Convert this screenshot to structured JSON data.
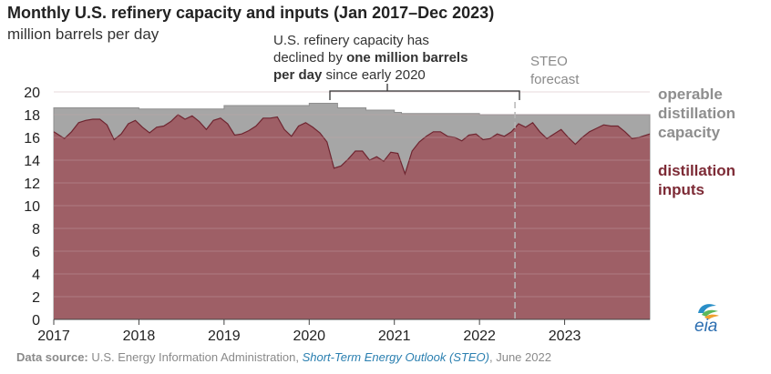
{
  "title": "Monthly U.S. refinery capacity and inputs (Jan 2017–Dec 2023)",
  "subtitle": "million barrels per day",
  "annotation": {
    "line1": "U.S. refinery capacity has",
    "line2_pre": "declined by ",
    "line2_bold": "one million barrels",
    "line3_bold": "per day",
    "line3_post": " since early 2020"
  },
  "forecast_label": [
    "STEO",
    "forecast"
  ],
  "legend": {
    "capacity": [
      "operable",
      "distillation",
      "capacity"
    ],
    "inputs": [
      "distillation",
      "inputs"
    ]
  },
  "colors": {
    "capacity": "#a6a6a6",
    "inputs": "#9e5f66",
    "inputs_line": "#6e2530",
    "gridline": "#c6a3a7",
    "forecast_line": "#b8b8b8"
  },
  "source": {
    "label": "Data source:",
    "text1": " U.S. Energy Information Administration, ",
    "link": "Short-Term Energy Outlook (STEO)",
    "text2": ", June 2022"
  },
  "logo_text": "eia",
  "chart_data": {
    "type": "area",
    "x_start": "2017-01",
    "x_end": "2023-12",
    "xticks": [
      "2017",
      "2018",
      "2019",
      "2020",
      "2021",
      "2022",
      "2023"
    ],
    "ylim": [
      0,
      20
    ],
    "yticks": [
      "0",
      "2",
      "4",
      "6",
      "8",
      "10",
      "12",
      "14",
      "16",
      "18",
      "20"
    ],
    "grid": true,
    "forecast_start": "2022-06",
    "series": [
      {
        "name": "operable distillation capacity",
        "values": [
          18.6,
          18.6,
          18.6,
          18.6,
          18.6,
          18.6,
          18.6,
          18.6,
          18.6,
          18.6,
          18.6,
          18.6,
          18.5,
          18.5,
          18.5,
          18.5,
          18.5,
          18.5,
          18.5,
          18.5,
          18.5,
          18.5,
          18.5,
          18.5,
          18.8,
          18.8,
          18.8,
          18.8,
          18.8,
          18.8,
          18.8,
          18.8,
          18.8,
          18.8,
          18.8,
          18.8,
          19.0,
          19.0,
          19.0,
          19.0,
          18.6,
          18.6,
          18.6,
          18.6,
          18.4,
          18.4,
          18.4,
          18.4,
          18.2,
          18.1,
          18.1,
          18.1,
          18.1,
          18.1,
          18.1,
          18.1,
          18.1,
          18.1,
          18.1,
          18.1,
          18.0,
          18.0,
          18.0,
          18.0,
          18.0,
          18.0,
          18.0,
          18.0,
          18.0,
          18.0,
          18.0,
          18.0,
          18.0,
          18.0,
          18.0,
          18.0,
          18.0,
          18.0,
          18.0,
          18.0,
          18.0,
          18.0,
          18.0,
          18.0
        ]
      },
      {
        "name": "distillation inputs",
        "values": [
          16.5,
          15.9,
          16.5,
          17.3,
          17.5,
          17.6,
          17.6,
          17.1,
          15.8,
          16.3,
          17.2,
          17.5,
          16.9,
          16.4,
          16.9,
          17.0,
          17.4,
          18.0,
          17.6,
          17.9,
          17.4,
          16.7,
          17.5,
          17.7,
          17.2,
          16.2,
          16.3,
          16.6,
          17.0,
          17.7,
          17.7,
          17.8,
          16.7,
          16.1,
          17.0,
          17.3,
          16.9,
          16.4,
          15.6,
          13.3,
          13.5,
          14.1,
          14.8,
          14.8,
          14.0,
          14.3,
          13.9,
          14.7,
          14.6,
          12.8,
          14.8,
          15.6,
          16.1,
          16.5,
          16.5,
          16.1,
          16.0,
          15.7,
          16.2,
          16.3,
          15.8,
          15.9,
          16.3,
          16.1,
          16.5,
          17.2,
          16.9,
          17.3,
          16.5,
          15.9,
          16.3,
          16.7,
          16.0,
          15.4,
          16.0,
          16.5,
          16.8,
          17.1,
          17.0,
          17.0,
          16.5,
          15.9,
          16.0,
          16.3
        ]
      }
    ]
  }
}
